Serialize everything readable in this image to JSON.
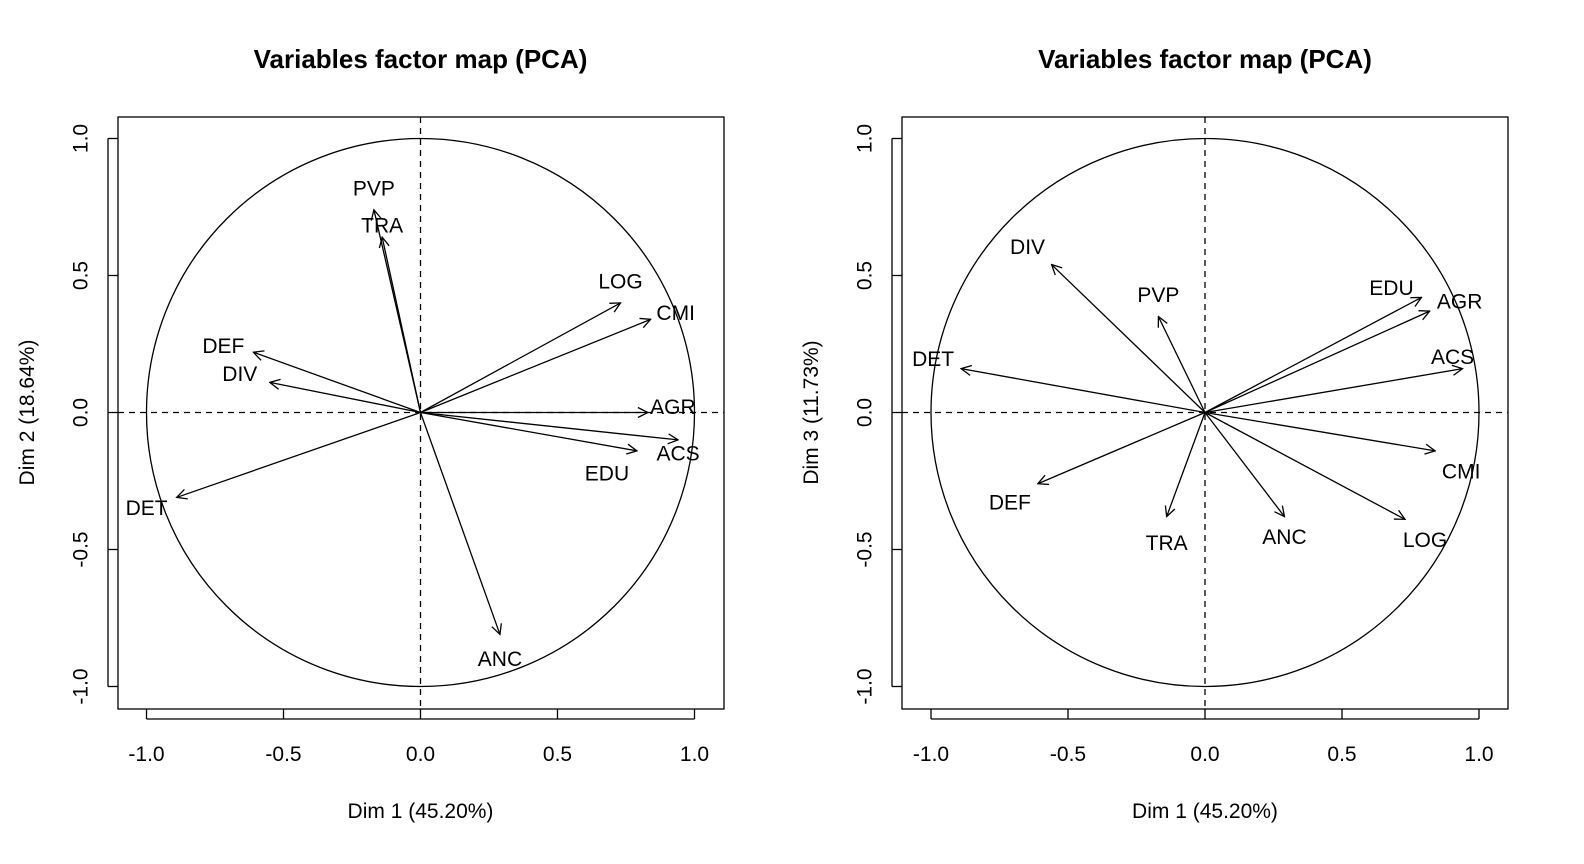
{
  "chart_data": [
    {
      "type": "scatter",
      "subtype": "pca-variable-correlation-circle",
      "title": "Variables factor map (PCA)",
      "xlabel": "Dim 1 (45.20%)",
      "ylabel": "Dim 2 (18.64%)",
      "xlim": [
        -1.1,
        1.1
      ],
      "ylim": [
        -1.08,
        1.08
      ],
      "xticks": [
        "-1.0",
        "-0.5",
        "0.0",
        "0.5",
        "1.0"
      ],
      "yticks": [
        "-1.0",
        "-0.5",
        "0.0",
        "0.5",
        "1.0"
      ],
      "grid": false,
      "unit_circle": true,
      "reference_lines": "dashed at x=0 and y=0",
      "variables": [
        {
          "name": "PVP",
          "x": -0.17,
          "y": 0.74
        },
        {
          "name": "TRA",
          "x": -0.14,
          "y": 0.64
        },
        {
          "name": "LOG",
          "x": 0.73,
          "y": 0.4
        },
        {
          "name": "CMI",
          "x": 0.84,
          "y": 0.34
        },
        {
          "name": "DEF",
          "x": -0.61,
          "y": 0.22
        },
        {
          "name": "DIV",
          "x": -0.55,
          "y": 0.11
        },
        {
          "name": "AGR",
          "x": 0.83,
          "y": 0.0
        },
        {
          "name": "ACS",
          "x": 0.94,
          "y": -0.1
        },
        {
          "name": "EDU",
          "x": 0.79,
          "y": -0.14
        },
        {
          "name": "DET",
          "x": -0.89,
          "y": -0.31
        },
        {
          "name": "ANC",
          "x": 0.29,
          "y": -0.81
        }
      ]
    },
    {
      "type": "scatter",
      "subtype": "pca-variable-correlation-circle",
      "title": "Variables factor map (PCA)",
      "xlabel": "Dim 1 (45.20%)",
      "ylabel": "Dim 3 (11.73%)",
      "xlim": [
        -1.1,
        1.1
      ],
      "ylim": [
        -1.08,
        1.08
      ],
      "xticks": [
        "-1.0",
        "-0.5",
        "0.0",
        "0.5",
        "1.0"
      ],
      "yticks": [
        "-1.0",
        "-0.5",
        "0.0",
        "0.5",
        "1.0"
      ],
      "grid": false,
      "unit_circle": true,
      "reference_lines": "dashed at x=0 and y=0",
      "variables": [
        {
          "name": "DIV",
          "x": -0.56,
          "y": 0.54
        },
        {
          "name": "PVP",
          "x": -0.17,
          "y": 0.35
        },
        {
          "name": "EDU",
          "x": 0.79,
          "y": 0.42
        },
        {
          "name": "AGR",
          "x": 0.82,
          "y": 0.37
        },
        {
          "name": "ACS",
          "x": 0.94,
          "y": 0.16
        },
        {
          "name": "DET",
          "x": -0.89,
          "y": 0.16
        },
        {
          "name": "CMI",
          "x": 0.84,
          "y": -0.14
        },
        {
          "name": "DEF",
          "x": -0.61,
          "y": -0.26
        },
        {
          "name": "TRA",
          "x": -0.14,
          "y": -0.38
        },
        {
          "name": "ANC",
          "x": 0.29,
          "y": -0.38
        },
        {
          "name": "LOG",
          "x": 0.73,
          "y": -0.39
        }
      ]
    }
  ]
}
